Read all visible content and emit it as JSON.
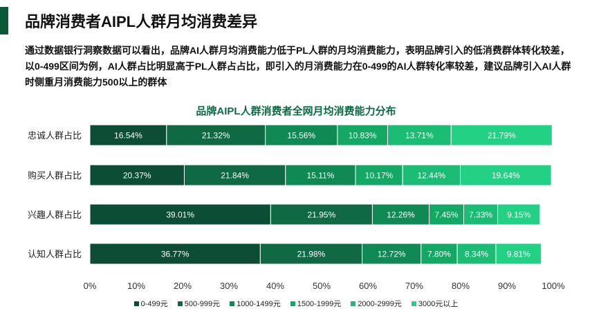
{
  "header": {
    "title": "品牌消费者AIPL人群月均消费差异",
    "description": "通过数据银行洞察数据可以看出，品牌AI人群月均消费能力低于PL人群的月均消费能力，表明品牌引入的低消费群体转化较差，以0-499区间为例，AI人群占比明显高于PL人群占占比，即引入的月消费能力在0-499的AI人群转化率较差，建议品牌引入AI人群时侧重月消费能力500以上的群体"
  },
  "chart_data": {
    "type": "bar",
    "orientation": "horizontal",
    "stacked": "percent",
    "title": "品牌AIPL人群消费者全网月均消费能力分布",
    "categories": [
      "忠诚人群占比",
      "购买人群占比",
      "兴趣人群占比",
      "认知人群占比"
    ],
    "series": [
      {
        "name": "0-499元",
        "values": [
          16.54,
          20.37,
          39.01,
          36.77
        ],
        "labels": [
          "16.54%",
          "20.37%",
          "39.01%",
          "36.77%"
        ],
        "color": "#0b4d35"
      },
      {
        "name": "500-999元",
        "values": [
          21.32,
          21.84,
          21.95,
          21.98
        ],
        "labels": [
          "21.32%",
          "21.84%",
          "21.95%",
          "21.98%"
        ],
        "color": "#0f6a44"
      },
      {
        "name": "1000-1499元",
        "values": [
          15.56,
          15.11,
          12.26,
          12.72
        ],
        "labels": [
          "15.56%",
          "15.11%",
          "12.26%",
          "12.72%"
        ],
        "color": "#0f8a55"
      },
      {
        "name": "1500-1999元",
        "values": [
          10.83,
          10.17,
          7.45,
          7.8
        ],
        "labels": [
          "10.83%",
          "10.17%",
          "7.45%",
          "7.80%"
        ],
        "color": "#14a865"
      },
      {
        "name": "2000-2999元",
        "values": [
          13.71,
          12.44,
          7.33,
          8.34
        ],
        "labels": [
          "13.71%",
          "12.44%",
          "7.33%",
          "8.34%"
        ],
        "color": "#1bbd74"
      },
      {
        "name": "3000元以上",
        "values": [
          21.79,
          19.64,
          9.15,
          9.81
        ],
        "labels": [
          "21.79%",
          "19.64%",
          "9.15%",
          "9.81%"
        ],
        "color": "#22d184"
      }
    ],
    "xlim": [
      0,
      100
    ],
    "x_ticks": [
      "0%",
      "10%",
      "20%",
      "30%",
      "40%",
      "50%",
      "60%",
      "70%",
      "80%",
      "90%",
      "100%"
    ],
    "legend": "bottom",
    "grid": false
  }
}
